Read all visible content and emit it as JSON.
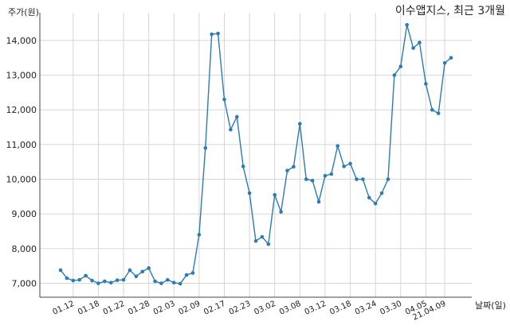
{
  "chart_data": {
    "type": "line",
    "title": "이수앱지스, 최근 3개월",
    "ylabel": "주가(원)",
    "xlabel": "날짜(일)",
    "ylim": [
      6600,
      14800
    ],
    "yticks": [
      7000,
      8000,
      9000,
      10000,
      11000,
      12000,
      13000,
      14000
    ],
    "ytick_labels": [
      "7,000",
      "8,000",
      "9,000",
      "10,000",
      "11,000",
      "12,000",
      "13,000",
      "14,000"
    ],
    "x_tick_labels": [
      "01.12",
      "01.18",
      "01.22",
      "01.28",
      "02.03",
      "02.09",
      "02.17",
      "02.23",
      "03.02",
      "03.08",
      "03.12",
      "03.18",
      "03.24",
      "03.30",
      "04.05",
      "21.04.09"
    ],
    "x_tick_index": [
      2,
      6,
      10,
      14,
      18,
      22,
      26,
      30,
      34,
      38,
      42,
      46,
      50,
      54,
      58,
      61
    ],
    "grid": true,
    "series": [
      {
        "color": "#2b7bb4",
        "values": [
          7380,
          7150,
          7080,
          7100,
          7220,
          7080,
          7000,
          7060,
          7020,
          7090,
          7100,
          7380,
          7200,
          7340,
          7440,
          7060,
          7000,
          7100,
          7020,
          6990,
          7240,
          7300,
          8400,
          10900,
          14180,
          14200,
          12300,
          11430,
          11800,
          10370,
          9600,
          8220,
          8340,
          8130,
          9550,
          9060,
          10250,
          10360,
          11600,
          10000,
          9960,
          9350,
          10100,
          10150,
          10960,
          10370,
          10450,
          10000,
          10000,
          9470,
          9300,
          9600,
          10000,
          13000,
          13250,
          14450,
          13780,
          13940,
          12750,
          12000,
          11900,
          13350,
          13500
        ]
      }
    ]
  }
}
